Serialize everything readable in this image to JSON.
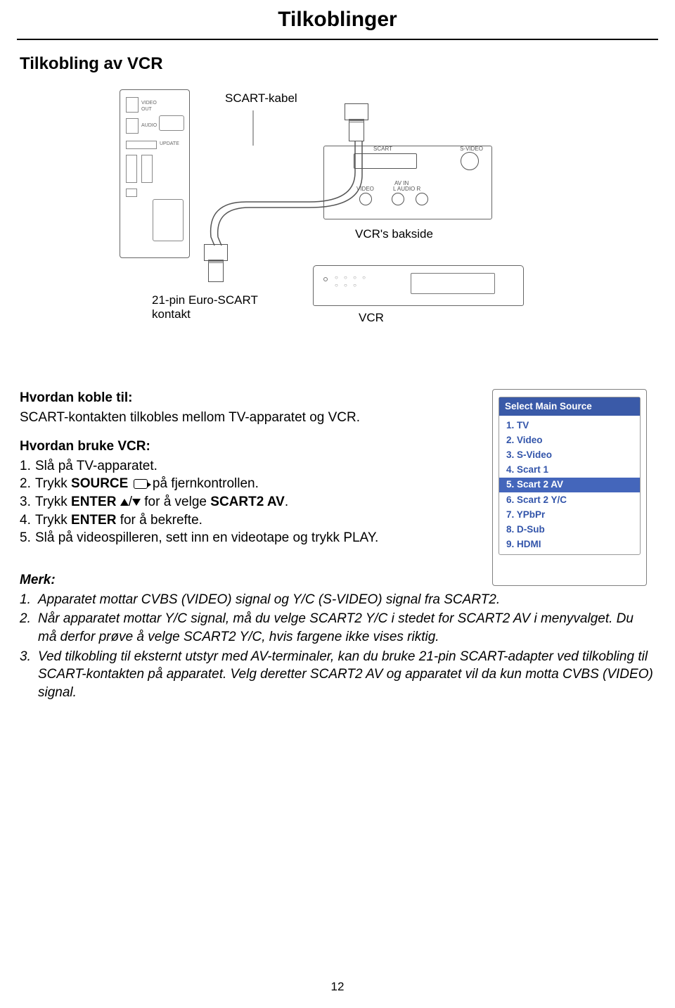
{
  "page_title": "Tilkoblinger",
  "section_heading": "Tilkobling av VCR",
  "diagram": {
    "scart_cable_label": "SCART-kabel",
    "vcr_back_label": "VCR's bakside",
    "contact_label_line1": "21-pin Euro-SCART",
    "contact_label_line2": "kontakt",
    "vcr_unit_label": "VCR",
    "vcr_ports": {
      "scart": "SCART",
      "svideo": "S-VIDEO",
      "avin": "AV IN",
      "video": "VIDEO",
      "audio": "L  AUDIO  R"
    }
  },
  "howto_connect": {
    "heading": "Hvordan koble til:",
    "body": "SCART-kontakten tilkobles mellom TV-apparatet og VCR."
  },
  "howto_use": {
    "heading": "Hvordan bruke VCR:",
    "steps": [
      "Slå på TV-apparatet.",
      "Trykk {B}SOURCE{/B} {ICON_SOURCE} på fjernkontrollen.",
      "Trykk {B}ENTER{/B} {TRI_UP}/{TRI_DN} for å velge {B}SCART2 AV{/B}.",
      "Trykk {B}ENTER{/B} for å bekrefte.",
      "Slå på videospilleren, sett inn en videotape og trykk PLAY."
    ]
  },
  "osd": {
    "title": "Select Main Source",
    "title_bg": "#3a5aa8",
    "selected_bg": "#4466bb",
    "item_color": "#3355aa",
    "selected_index": 4,
    "items": [
      "1. TV",
      "2. Video",
      "3. S-Video",
      "4. Scart 1",
      "5. Scart 2 AV",
      "6. Scart 2 Y/C",
      "7. YPbPr",
      "8. D-Sub",
      "9. HDMI"
    ]
  },
  "merk": {
    "heading": "Merk:",
    "items": [
      "Apparatet mottar CVBS (VIDEO) signal og Y/C (S-VIDEO) signal fra SCART2.",
      "Når apparatet mottar Y/C signal, må du velge SCART2 Y/C i stedet for SCART2 AV i menyvalget. Du må derfor prøve å velge SCART2 Y/C, hvis fargene ikke vises riktig.",
      "Ved tilkobling til eksternt utstyr med AV-terminaler, kan du bruke 21-pin SCART-adapter ved tilkobling til SCART-kontakten på apparatet. Velg deretter SCART2 AV og apparatet vil da kun motta CVBS (VIDEO) signal."
    ]
  },
  "page_number": "12"
}
